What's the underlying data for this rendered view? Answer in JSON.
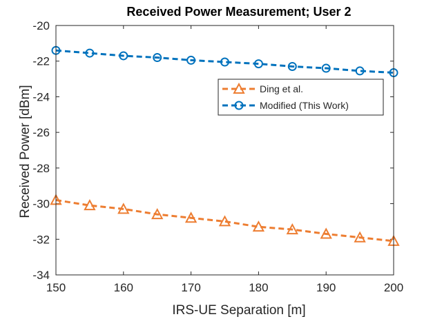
{
  "chart_data": {
    "type": "line",
    "title": "Received Power Measurement; User 2",
    "xlabel": "IRS-UE Separation [m]",
    "ylabel": "Received Power [dBm]",
    "xlim": [
      150,
      200
    ],
    "ylim": [
      -34,
      -20
    ],
    "xticks": [
      "150",
      "160",
      "170",
      "180",
      "190",
      "200"
    ],
    "yticks": [
      "-20",
      "-22",
      "-24",
      "-26",
      "-28",
      "-30",
      "-32",
      "-34"
    ],
    "x": [
      150,
      155,
      160,
      165,
      170,
      175,
      180,
      185,
      190,
      195,
      200
    ],
    "grid": false,
    "legend_position": "upper-right",
    "series": [
      {
        "name": "Ding et al.",
        "color": "#ed7d31",
        "marker": "triangle",
        "values": [
          -29.8,
          -30.1,
          -30.3,
          -30.6,
          -30.8,
          -31.0,
          -31.3,
          -31.45,
          -31.7,
          -31.9,
          -32.1
        ]
      },
      {
        "name": "Modified (This Work)",
        "color": "#0072bd",
        "marker": "circle",
        "values": [
          -21.4,
          -21.55,
          -21.7,
          -21.8,
          -21.95,
          -22.05,
          -22.15,
          -22.3,
          -22.4,
          -22.55,
          -22.65
        ]
      }
    ]
  }
}
